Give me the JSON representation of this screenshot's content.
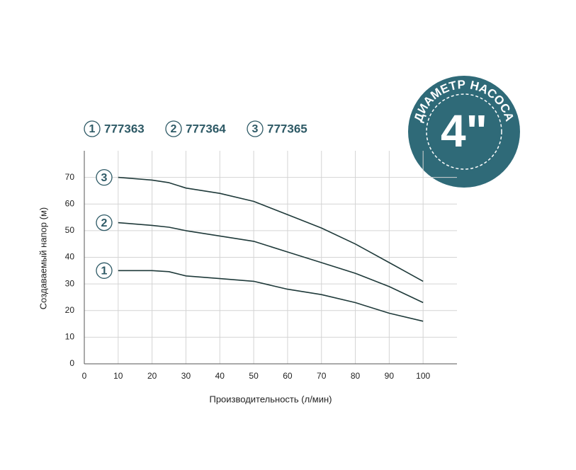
{
  "chart_data": {
    "type": "line",
    "x_label": "Производительность (л/мин)",
    "y_label": "Создаваемый напор (м)",
    "x": [
      10,
      20,
      25,
      30,
      40,
      50,
      60,
      70,
      80,
      90,
      100
    ],
    "series": [
      {
        "name": "777363",
        "label": "1",
        "color": "#1f3a3a",
        "values": [
          35,
          35,
          34.6,
          33,
          32,
          31,
          28,
          26,
          23,
          19,
          16
        ]
      },
      {
        "name": "777364",
        "label": "2",
        "color": "#1f3a3a",
        "values": [
          53,
          52,
          51.3,
          50,
          48,
          46,
          42,
          38,
          34,
          29,
          23
        ]
      },
      {
        "name": "777365",
        "label": "3",
        "color": "#1f3a3a",
        "values": [
          70,
          69,
          68,
          66,
          64,
          61,
          56,
          51,
          45,
          38,
          31
        ]
      }
    ],
    "xlim": [
      0,
      110
    ],
    "ylim": [
      0,
      80
    ],
    "xticks": [
      0,
      10,
      20,
      30,
      40,
      50,
      60,
      70,
      80,
      90,
      100
    ],
    "yticks": [
      0,
      10,
      20,
      30,
      40,
      50,
      60,
      70
    ],
    "grid": true,
    "badge": {
      "caption": "ДИАМЕТР НАСОСА",
      "size": "4\""
    }
  }
}
